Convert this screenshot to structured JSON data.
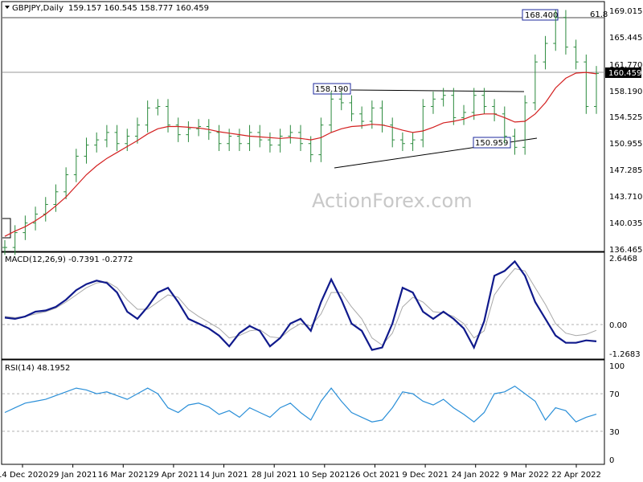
{
  "chart_data": [
    {
      "type": "candlestick",
      "title": "GBPJPY,Daily",
      "ohlc_label": "159.157 160.545 158.777 160.459",
      "watermark": "ActionForex.com",
      "ylim": [
        136.465,
        169.05
      ],
      "y_ticks": [
        "169.015",
        "165.445",
        "161.770",
        "158.190",
        "154.525",
        "150.955",
        "147.285",
        "143.710",
        "140.035",
        "136.465"
      ],
      "current_price": "160.459",
      "annotations": {
        "peak": "168.400",
        "resistance": "158.190",
        "support": "150.959",
        "fib": "61.8"
      },
      "x_ticks": [
        "14 Dec 2020",
        "29 Jan 2021",
        "16 Mar 2021",
        "29 Apr 2021",
        "14 Jun 2021",
        "28 Jul 2021",
        "10 Sep 2021",
        "26 Oct 2021",
        "9 Dec 2021",
        "24 Jan 2022",
        "9 Mar 2022",
        "22 Apr 2022"
      ],
      "grid": false,
      "series": [
        {
          "name": "Close",
          "values": [
            137.0,
            139.0,
            140.3,
            141.5,
            142.8,
            144.5,
            146.8,
            149.3,
            150.8,
            151.5,
            152.5,
            151.0,
            152.0,
            153.5,
            155.8,
            156.0,
            153.5,
            152.2,
            153.0,
            153.3,
            152.5,
            151.0,
            152.0,
            151.0,
            152.5,
            151.5,
            150.8,
            152.0,
            152.5,
            151.0,
            149.5,
            153.5,
            157.0,
            156.5,
            155.0,
            154.0,
            155.8,
            153.5,
            151.5,
            151.0,
            151.5,
            156.0,
            157.0,
            157.5,
            154.5,
            155.2,
            157.5,
            156.0,
            155.0,
            152.0,
            150.5,
            156.5,
            162.0,
            164.5,
            168.0,
            164.0,
            162.0,
            156.0,
            160.459
          ]
        },
        {
          "name": "MA",
          "values": [
            138.5,
            139.2,
            139.8,
            140.6,
            141.5,
            142.6,
            143.8,
            145.3,
            146.8,
            148.0,
            149.0,
            149.8,
            150.6,
            151.4,
            152.3,
            153.0,
            153.3,
            153.3,
            153.2,
            153.1,
            152.9,
            152.6,
            152.4,
            152.2,
            152.0,
            151.9,
            151.8,
            151.7,
            151.8,
            151.7,
            151.5,
            151.8,
            152.5,
            153.0,
            153.3,
            153.4,
            153.6,
            153.5,
            153.2,
            152.8,
            152.5,
            152.7,
            153.2,
            153.8,
            154.0,
            154.3,
            154.8,
            155.0,
            155.0,
            154.5,
            153.9,
            154.0,
            155.0,
            156.5,
            158.5,
            159.8,
            160.5,
            160.6,
            160.4
          ]
        }
      ]
    },
    {
      "type": "line",
      "title": "MACD(12,26,9) -0.7391 -0.2772",
      "ylim": [
        -1.45,
        2.85
      ],
      "y_ticks": [
        "2.6468",
        "0.00",
        "-1.2683"
      ],
      "series": [
        {
          "name": "MACD",
          "values": [
            0.25,
            0.2,
            0.3,
            0.5,
            0.55,
            0.7,
            1.0,
            1.4,
            1.65,
            1.8,
            1.7,
            1.3,
            0.5,
            0.2,
            0.7,
            1.3,
            1.5,
            0.9,
            0.2,
            0.0,
            -0.2,
            -0.5,
            -0.95,
            -0.4,
            -0.1,
            -0.3,
            -0.95,
            -0.6,
            0.0,
            0.2,
            -0.3,
            0.9,
            1.85,
            1.0,
            0.0,
            -0.3,
            -1.1,
            -1.0,
            0.0,
            1.5,
            1.3,
            0.5,
            0.2,
            0.5,
            0.2,
            -0.2,
            -1.0,
            0.1,
            2.0,
            2.2,
            2.6,
            2.0,
            0.9,
            0.2,
            -0.5,
            -0.8,
            -0.8,
            -0.7,
            -0.74
          ]
        },
        {
          "name": "Signal",
          "values": [
            0.3,
            0.25,
            0.3,
            0.4,
            0.5,
            0.65,
            0.9,
            1.2,
            1.5,
            1.7,
            1.75,
            1.5,
            1.0,
            0.6,
            0.6,
            0.9,
            1.2,
            1.1,
            0.6,
            0.3,
            0.05,
            -0.2,
            -0.6,
            -0.5,
            -0.3,
            -0.25,
            -0.55,
            -0.6,
            -0.25,
            0.0,
            -0.1,
            0.4,
            1.3,
            1.3,
            0.7,
            0.2,
            -0.6,
            -0.9,
            -0.4,
            0.7,
            1.1,
            0.9,
            0.5,
            0.45,
            0.3,
            0.0,
            -0.6,
            -0.3,
            1.2,
            1.8,
            2.3,
            2.2,
            1.5,
            0.8,
            0.0,
            -0.4,
            -0.5,
            -0.45,
            -0.28
          ]
        }
      ]
    },
    {
      "type": "line",
      "title": "RSI(14) 48.1952",
      "ylim": [
        0,
        100
      ],
      "y_ticks": [
        "100",
        "70",
        "30",
        "0"
      ],
      "y_tick_values": [
        100,
        70,
        30,
        0
      ],
      "reference_lines": [
        70,
        30
      ],
      "series": [
        {
          "name": "RSI",
          "values": [
            50,
            55,
            60,
            62,
            64,
            68,
            72,
            76,
            74,
            70,
            72,
            68,
            64,
            70,
            76,
            70,
            55,
            50,
            58,
            60,
            56,
            48,
            52,
            45,
            55,
            50,
            45,
            55,
            60,
            50,
            42,
            62,
            76,
            62,
            50,
            45,
            40,
            42,
            55,
            72,
            70,
            62,
            58,
            64,
            55,
            48,
            40,
            50,
            70,
            72,
            78,
            70,
            62,
            42,
            55,
            52,
            40,
            45,
            48.1952
          ]
        }
      ]
    }
  ]
}
